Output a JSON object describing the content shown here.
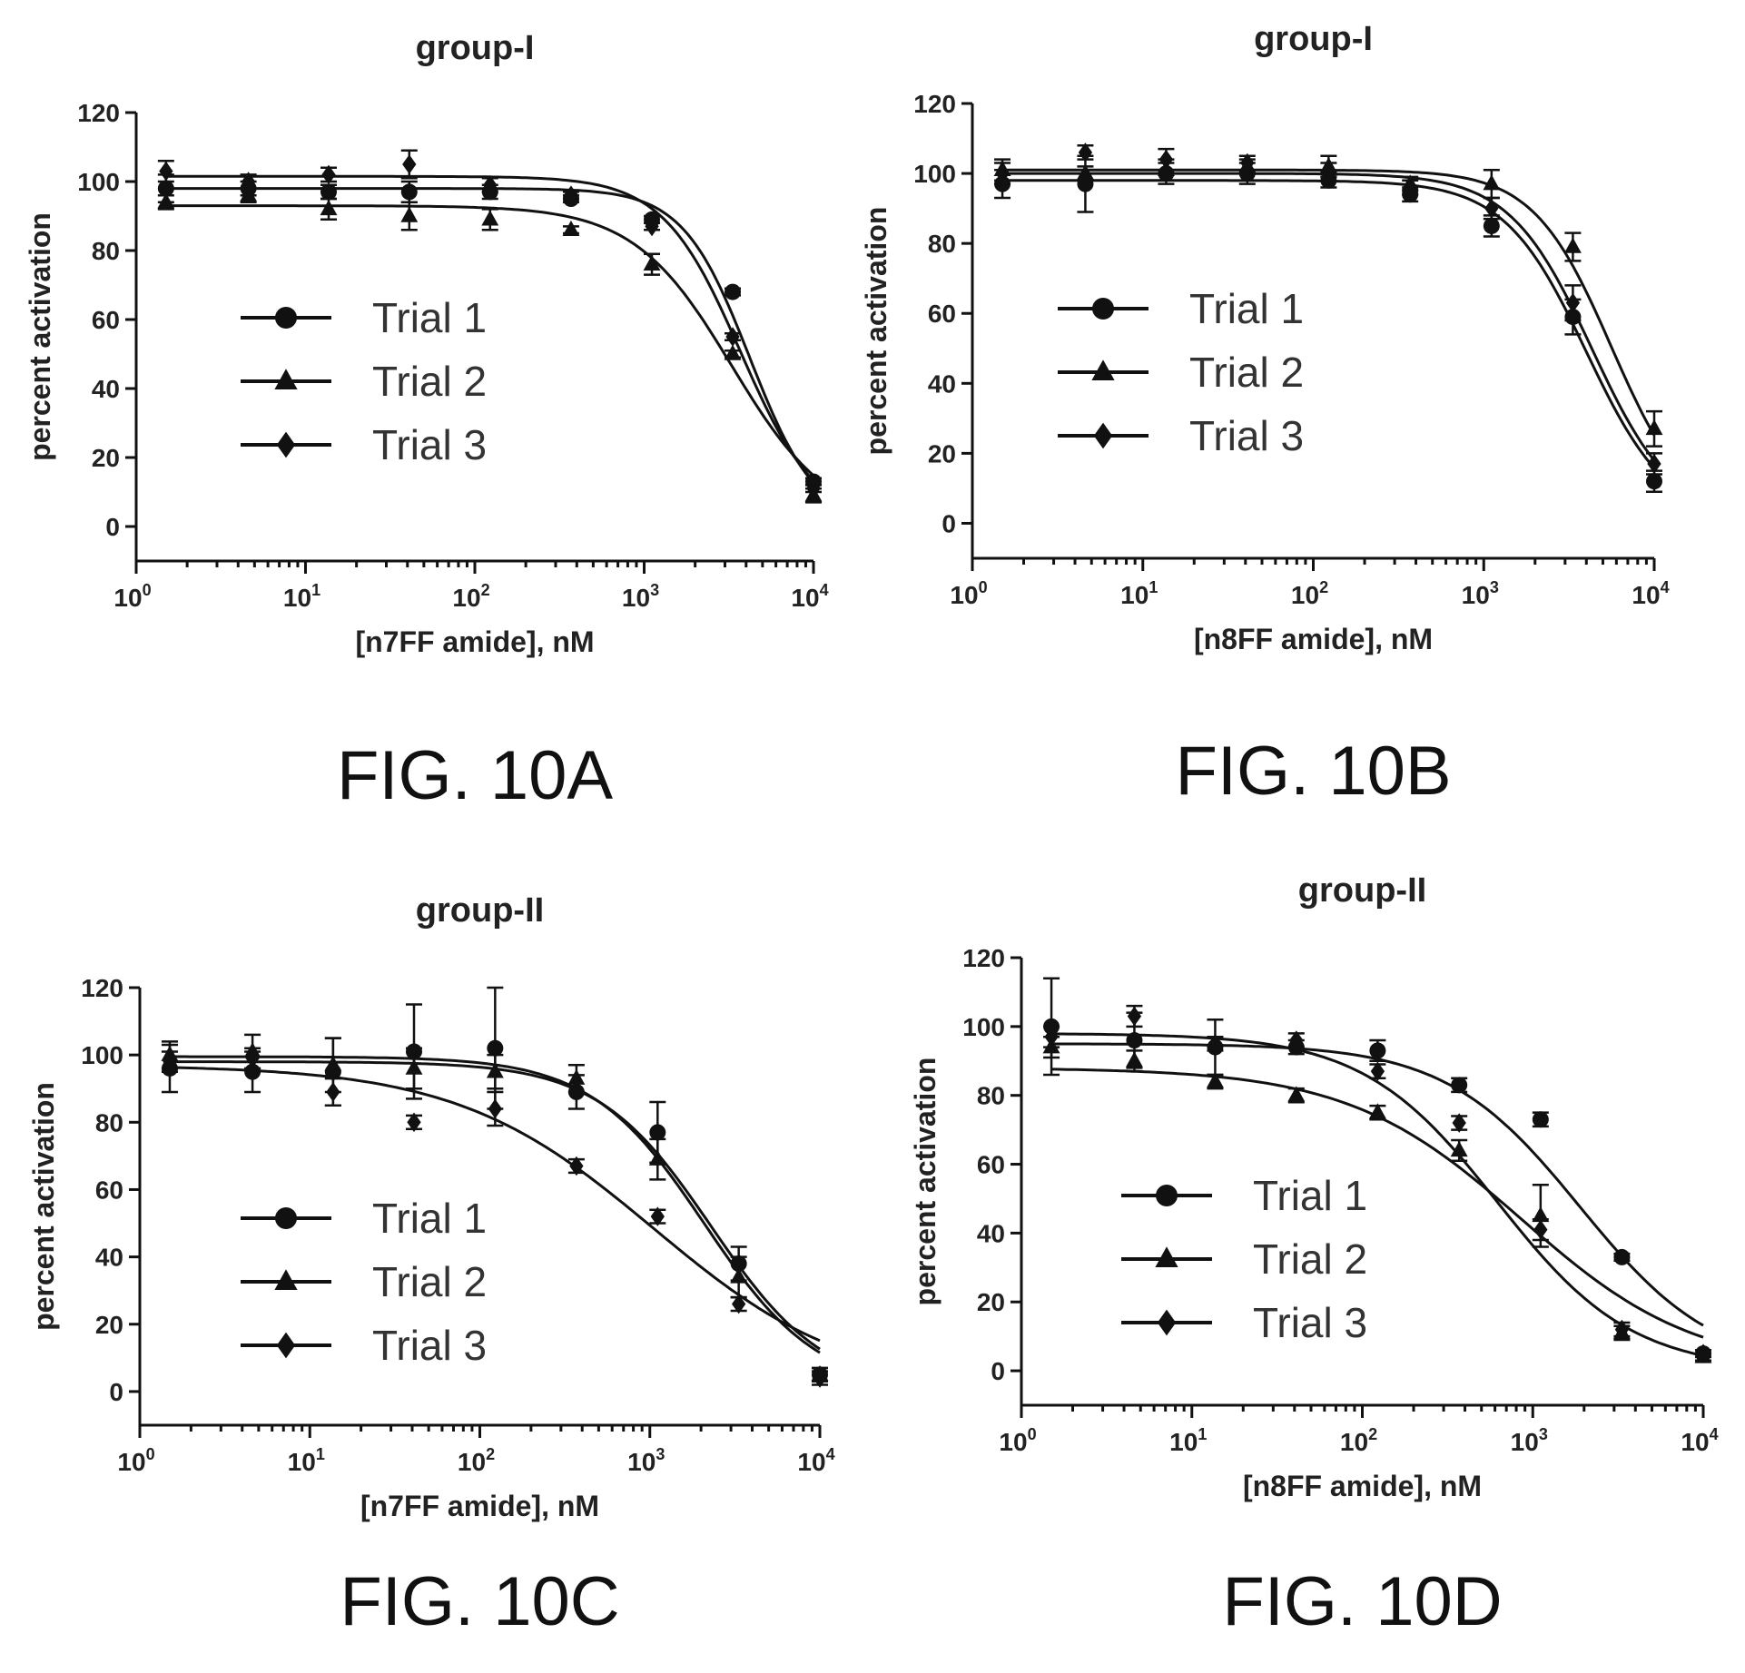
{
  "chart_data": [
    {
      "type": "scatter",
      "title": "group-I",
      "caption": "FIG. 10A",
      "xlabel": "[n7FF amide], nM",
      "ylabel": "percent activation",
      "xscale": "log",
      "xlim": [
        1,
        10000
      ],
      "ylim": [
        -10,
        120
      ],
      "yticks": [
        0,
        20,
        40,
        60,
        80,
        100,
        120
      ],
      "xticks": [
        1,
        10,
        100,
        1000,
        10000
      ],
      "xtick_labels": [
        "10^0",
        "10^1",
        "10^2",
        "10^3",
        "10^4"
      ],
      "legend_position": "center-left",
      "x": [
        1.5,
        4.6,
        13.7,
        41,
        123,
        370,
        1111,
        3333,
        10000
      ],
      "series": [
        {
          "name": "Trial 1",
          "marker": "circle",
          "values": [
            98,
            98,
            97,
            97,
            97,
            95,
            89,
            68,
            13
          ],
          "errors": [
            4,
            2,
            2,
            3,
            2,
            1,
            1,
            1,
            1
          ],
          "fit": {
            "top": 98,
            "bottom": 0,
            "ec50": 4200,
            "hill": 2.2
          }
        },
        {
          "name": "Trial 2",
          "marker": "triangle",
          "values": [
            94,
            96,
            92,
            90,
            89,
            86,
            76,
            50,
            9
          ],
          "errors": [
            2,
            2,
            3,
            4,
            3,
            1,
            3,
            1,
            2
          ],
          "fit": {
            "top": 93,
            "bottom": 0,
            "ec50": 3300,
            "hill": 1.5
          }
        },
        {
          "name": "Trial 3",
          "marker": "diamond",
          "values": [
            103,
            100,
            102,
            105,
            99,
            96,
            87,
            55,
            11
          ],
          "errors": [
            3,
            2,
            2,
            4,
            2,
            1,
            1,
            1,
            1
          ],
          "fit": {
            "top": 101.5,
            "bottom": 0,
            "ec50": 3700,
            "hill": 1.9
          }
        }
      ]
    },
    {
      "type": "scatter",
      "title": "group-I",
      "caption": "FIG. 10B",
      "xlabel": "[n8FF amide], nM",
      "ylabel": "percent activation",
      "xscale": "log",
      "xlim": [
        1,
        10000
      ],
      "ylim": [
        -10,
        120
      ],
      "yticks": [
        0,
        20,
        40,
        60,
        80,
        100,
        120
      ],
      "xticks": [
        1,
        10,
        100,
        1000,
        10000
      ],
      "xtick_labels": [
        "10^0",
        "10^1",
        "10^2",
        "10^3",
        "10^4"
      ],
      "legend_position": "center-left",
      "x": [
        1.5,
        4.6,
        13.7,
        41,
        123,
        370,
        1111,
        3333,
        10000
      ],
      "series": [
        {
          "name": "Trial 1",
          "marker": "circle",
          "values": [
            97,
            97,
            100,
            100,
            98,
            94,
            85,
            59,
            12
          ],
          "errors": [
            4,
            8,
            3,
            3,
            2,
            2,
            3,
            5,
            3
          ],
          "fit": {
            "top": 98,
            "bottom": 0,
            "ec50": 4000,
            "hill": 1.8
          }
        },
        {
          "name": "Trial 2",
          "marker": "triangle",
          "values": [
            101,
            100,
            101,
            102,
            102,
            97,
            97,
            79,
            27
          ],
          "errors": [
            3,
            2,
            3,
            2,
            3,
            2,
            4,
            4,
            5
          ],
          "fit": {
            "top": 101,
            "bottom": 0,
            "ec50": 5600,
            "hill": 1.9
          }
        },
        {
          "name": "Trial 3",
          "marker": "diamond",
          "values": [
            100,
            106,
            104,
            103,
            101,
            96,
            90,
            63,
            17
          ],
          "errors": [
            3,
            2,
            3,
            2,
            2,
            2,
            3,
            5,
            3
          ],
          "fit": {
            "top": 100,
            "bottom": 0,
            "ec50": 4300,
            "hill": 1.8
          }
        }
      ]
    },
    {
      "type": "scatter",
      "title": "group-II",
      "caption": "FIG. 10C",
      "xlabel": "[n7FF amide], nM",
      "ylabel": "percent activation",
      "xscale": "log",
      "xlim": [
        1,
        10000
      ],
      "ylim": [
        -10,
        120
      ],
      "yticks": [
        0,
        20,
        40,
        60,
        80,
        100,
        120
      ],
      "xticks": [
        1,
        10,
        100,
        1000,
        10000
      ],
      "xtick_labels": [
        "10^0",
        "10^1",
        "10^2",
        "10^3",
        "10^4"
      ],
      "legend_position": "center-left",
      "x": [
        1.5,
        4.6,
        13.7,
        41,
        123,
        370,
        1111,
        3333,
        10000
      ],
      "series": [
        {
          "name": "Trial 1",
          "marker": "circle",
          "values": [
            96,
            95,
            95,
            101,
            102,
            89,
            77,
            38,
            5
          ],
          "errors": [
            7,
            6,
            10,
            14,
            18,
            5,
            9,
            5,
            2
          ],
          "fit": {
            "top": 98,
            "bottom": 0,
            "ec50": 2300,
            "hill": 1.3
          }
        },
        {
          "name": "Trial 2",
          "marker": "triangle",
          "values": [
            100,
            101,
            97,
            96,
            95,
            93,
            69,
            34,
            5
          ],
          "errors": [
            4,
            5,
            8,
            6,
            5,
            4,
            6,
            6,
            2
          ],
          "fit": {
            "top": 99.5,
            "bottom": 0,
            "ec50": 2100,
            "hill": 1.3
          }
        },
        {
          "name": "Trial 3",
          "marker": "diamond",
          "values": [
            98,
            99,
            89,
            80,
            84,
            67,
            52,
            26,
            4
          ],
          "errors": [
            3,
            3,
            4,
            2,
            5,
            2,
            2,
            2,
            2
          ],
          "fit": {
            "top": 97,
            "bottom": 0,
            "ec50": 1050,
            "hill": 0.75
          }
        }
      ]
    },
    {
      "type": "scatter",
      "title": "group-II",
      "caption": "FIG. 10D",
      "xlabel": "[n8FF amide], nM",
      "ylabel": "percent activation",
      "xscale": "log",
      "xlim": [
        1,
        10000
      ],
      "ylim": [
        -10,
        120
      ],
      "yticks": [
        0,
        20,
        40,
        60,
        80,
        100,
        120
      ],
      "xticks": [
        1,
        10,
        100,
        1000,
        10000
      ],
      "xtick_labels": [
        "10^0",
        "10^1",
        "10^2",
        "10^3",
        "10^4"
      ],
      "legend_position": "center-left",
      "x": [
        1.5,
        4.6,
        13.7,
        41,
        123,
        370,
        1111,
        3333,
        10000
      ],
      "series": [
        {
          "name": "Trial 1",
          "marker": "circle",
          "values": [
            100,
            96,
            94,
            94,
            93,
            83,
            73,
            33,
            5
          ],
          "errors": [
            14,
            8,
            8,
            2,
            3,
            2,
            2,
            1,
            1
          ],
          "fit": {
            "top": 95,
            "bottom": 0,
            "ec50": 1900,
            "hill": 1.1
          }
        },
        {
          "name": "Trial 2",
          "marker": "triangle",
          "values": [
            94,
            90,
            84,
            80,
            75,
            64,
            45,
            11,
            4
          ],
          "errors": [
            3,
            3,
            2,
            2,
            2,
            3,
            9,
            2,
            1
          ],
          "fit": {
            "top": 88,
            "bottom": 0,
            "ec50": 860,
            "hill": 0.85
          }
        },
        {
          "name": "Trial 3",
          "marker": "diamond",
          "values": [
            97,
            103,
            95,
            96,
            87,
            72,
            41,
            12,
            5
          ],
          "errors": [
            3,
            3,
            2,
            2,
            2,
            2,
            3,
            2,
            1
          ],
          "fit": {
            "top": 98,
            "bottom": 0,
            "ec50": 620,
            "hill": 1.1
          }
        }
      ]
    }
  ]
}
